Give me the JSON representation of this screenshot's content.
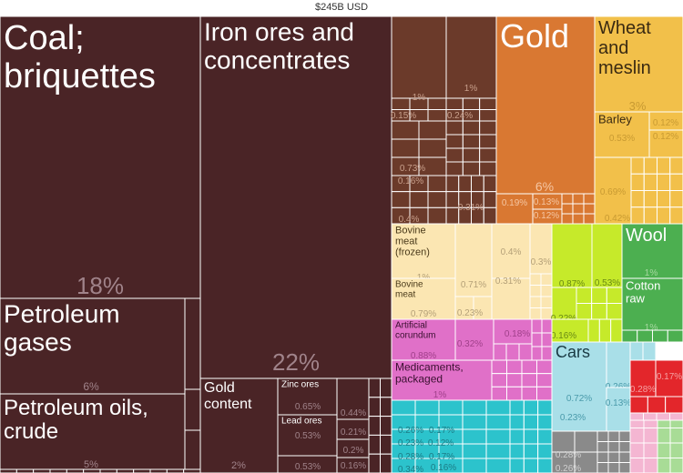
{
  "total_label": "$245B USD",
  "colors": {
    "minerals": "#4a2426",
    "metals": "#6b3a2a",
    "gold": "#d97832",
    "cereals": "#f2c04a",
    "animal": "#fbe6b2",
    "lime": "#c6ea2a",
    "green": "#4caf50",
    "pink": "#e070c8",
    "teal": "#2cc3cc",
    "lightblue": "#a9dfe8",
    "red": "#e3262b",
    "gray": "#8a8a8a",
    "lightpink": "#f4b6d2",
    "lightgreen": "#a8dc96"
  },
  "chart_data": {
    "type": "treemap",
    "title": "$245B USD",
    "unit": "share of total exports",
    "tiles": [
      {
        "id": "coal",
        "label": "Coal; briquettes",
        "value_label": "18%",
        "value": 18,
        "group": "minerals"
      },
      {
        "id": "petroleum-gases",
        "label": "Petroleum gases",
        "value_label": "6%",
        "value": 6,
        "group": "minerals"
      },
      {
        "id": "petroleum-oils",
        "label": "Petroleum oils, crude",
        "value_label": "5%",
        "value": 5,
        "group": "minerals"
      },
      {
        "id": "iron-ores",
        "label": "Iron ores and concentrates",
        "value_label": "22%",
        "value": 22,
        "group": "minerals"
      },
      {
        "id": "gold-content",
        "label": "Gold content",
        "value_label": "2%",
        "value": 2,
        "group": "minerals"
      },
      {
        "id": "zinc-ores",
        "label": "Zinc ores",
        "value_label": "0.65%",
        "value": 0.65,
        "group": "minerals"
      },
      {
        "id": "lead-ores",
        "label": "Lead ores",
        "value_label": "0.53%",
        "value": 0.53,
        "group": "minerals"
      },
      {
        "id": "min-a",
        "label": "",
        "value_label": "0.53%",
        "value": 0.53,
        "group": "minerals"
      },
      {
        "id": "min-b",
        "label": "",
        "value_label": "0.44%",
        "value": 0.44,
        "group": "minerals"
      },
      {
        "id": "min-c",
        "label": "",
        "value_label": "0.21%",
        "value": 0.21,
        "group": "minerals"
      },
      {
        "id": "min-d",
        "label": "",
        "value_label": "0.2%",
        "value": 0.2,
        "group": "minerals"
      },
      {
        "id": "min-e",
        "label": "",
        "value_label": "0.16%",
        "value": 0.16,
        "group": "minerals"
      },
      {
        "id": "gold",
        "label": "Gold",
        "value_label": "6%",
        "value": 6,
        "group": "gold"
      },
      {
        "id": "wheat",
        "label": "Wheat and meslin",
        "value_label": "3%",
        "value": 3,
        "group": "cereals"
      },
      {
        "id": "barley",
        "label": "Barley",
        "value_label": "0.53%",
        "value": 0.53,
        "group": "cereals"
      },
      {
        "id": "bovine-frozen",
        "label": "Bovine meat (frozen)",
        "value_label": "1%",
        "value": 1,
        "group": "animal"
      },
      {
        "id": "bovine-meat",
        "label": "Bovine meat",
        "value_label": "0.79%",
        "value": 0.79,
        "group": "animal"
      },
      {
        "id": "wool",
        "label": "Wool",
        "value_label": "1%",
        "value": 1,
        "group": "green"
      },
      {
        "id": "cotton",
        "label": "Cotton raw",
        "value_label": "1%",
        "value": 1,
        "group": "green"
      },
      {
        "id": "corundum",
        "label": "Artificial corundum",
        "value_label": "0.88%",
        "value": 0.88,
        "group": "pink"
      },
      {
        "id": "medicaments",
        "label": "Medicaments, packaged",
        "value_label": "1%",
        "value": 1,
        "group": "pink"
      },
      {
        "id": "cars",
        "label": "Cars",
        "value_label": "0.72%",
        "value": 0.72,
        "group": "lightblue"
      }
    ],
    "small_value_labels": [
      "1%",
      "0.15%",
      "1%",
      "0.24%",
      "0.73%",
      "0.16%",
      "0.4%",
      "0.31%",
      "0.19%",
      "0.13%",
      "0.12%",
      "0.12%",
      "0.12%",
      "0.69%",
      "0.42%",
      "0.4%",
      "0.71%",
      "0.31%",
      "0.3%",
      "0.23%",
      "0.87%",
      "0.53%",
      "0.22%",
      "0.16%",
      "0.32%",
      "0.18%",
      "0.23%",
      "0.26%",
      "0.13%",
      "0.28%",
      "0.17%",
      "0.34%",
      "0.12%",
      "0.12%",
      "0.17%",
      "0.11%",
      "0.16%",
      "0.1%",
      "0.15%",
      "0.28%",
      "0.26%"
    ]
  }
}
